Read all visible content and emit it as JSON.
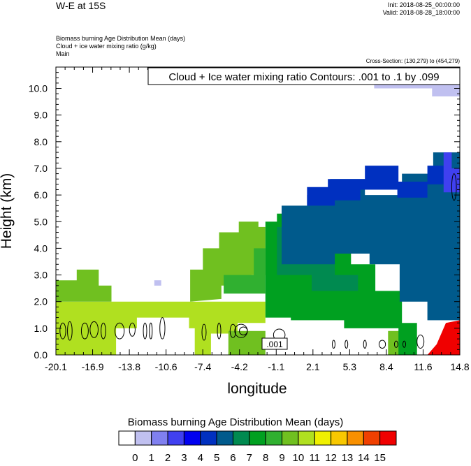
{
  "header": {
    "title": "W-E at 15S",
    "init": "Init: 2018-08-25_00:00:00",
    "valid": "Valid: 2018-08-28_18:00:00",
    "field_lines": [
      "Biomass burning Age Distribution Mean   (days)",
      "Cloud + ice water mixing ratio   (g/kg)",
      "Main"
    ],
    "cross_section": "Cross-Section: (130,279) to (454,279)"
  },
  "chart_data": {
    "type": "heatmap",
    "xlabel": "longitude",
    "ylabel": "Height (km)",
    "x_ticks": [
      "-20.1",
      "-16.9",
      "-13.8",
      "-10.6",
      "-7.4",
      "-4.2",
      "-1.1",
      "2.1",
      "5.3",
      "8.4",
      "11.6",
      "14.8"
    ],
    "y_ticks": [
      "0.0",
      "1.0",
      "2.0",
      "3.0",
      "4.0",
      "5.0",
      "6.0",
      "7.0",
      "8.0",
      "9.0",
      "10.0"
    ],
    "xlim": [
      -20.1,
      14.8
    ],
    "ylim": [
      0,
      10.8
    ],
    "contour_label": "Cloud + Ice water mixing ratio Contours: .001 to .1 by .099",
    "contour_value_label": ".001",
    "colorbar": {
      "title": "Biomass burning Age Distribution Mean  (days)",
      "labels": [
        "0",
        "1",
        "2",
        "3",
        "4",
        "5",
        "6",
        "7",
        "8",
        "9",
        "10",
        "11",
        "12",
        "13",
        "14",
        "15"
      ],
      "colors": [
        "#ffffff",
        "#c0c0f0",
        "#8080f0",
        "#4040f0",
        "#0000f0",
        "#0030c0",
        "#005a8c",
        "#008a50",
        "#00a020",
        "#30b030",
        "#70c020",
        "#b0e020",
        "#f0f000",
        "#f8c800",
        "#f89000",
        "#f04000",
        "#f00000"
      ]
    },
    "regions": [
      {
        "level": 11,
        "points": [
          [
            -20.1,
            0
          ],
          [
            -14.9,
            0
          ],
          [
            -14.9,
            1.0
          ],
          [
            -13.1,
            1.0
          ],
          [
            -13.1,
            1.4
          ],
          [
            -8.6,
            1.4
          ],
          [
            -8.6,
            1.0
          ],
          [
            -8.1,
            1.0
          ],
          [
            -8.1,
            0
          ],
          [
            -6.7,
            0
          ],
          [
            -6.7,
            0.8
          ],
          [
            -4.4,
            0.8
          ],
          [
            -4.4,
            1.2
          ],
          [
            -2.0,
            1.2
          ],
          [
            -2.0,
            2.0
          ],
          [
            -20.1,
            2.0
          ]
        ]
      },
      {
        "level": 10,
        "points": [
          [
            -20.1,
            2.0
          ],
          [
            -20.1,
            2.8
          ],
          [
            -18.3,
            2.8
          ],
          [
            -18.3,
            3.2
          ],
          [
            -16.4,
            3.2
          ],
          [
            -16.4,
            2.6
          ],
          [
            -15.3,
            2.6
          ],
          [
            -15.3,
            2.0
          ]
        ]
      },
      {
        "level": 10,
        "points": [
          [
            -5.2,
            0
          ],
          [
            -5.2,
            0.9
          ],
          [
            -2.0,
            0.9
          ],
          [
            -2.0,
            0
          ]
        ]
      },
      {
        "level": 10,
        "points": [
          [
            -8.5,
            2.0
          ],
          [
            -8.5,
            3.2
          ],
          [
            -7.4,
            3.2
          ],
          [
            -7.4,
            4.0
          ],
          [
            -6.0,
            4.0
          ],
          [
            -6.0,
            4.6
          ],
          [
            -4.3,
            4.6
          ],
          [
            -4.3,
            5.0
          ],
          [
            -2.6,
            5.0
          ],
          [
            -2.6,
            4.8
          ],
          [
            -2.0,
            4.8
          ],
          [
            -2.0,
            3.0
          ],
          [
            -3.2,
            3.0
          ],
          [
            -3.2,
            2.6
          ],
          [
            -5.8,
            2.6
          ],
          [
            -5.8,
            2.1
          ]
        ]
      },
      {
        "level": 10,
        "points": [
          [
            8.6,
            0
          ],
          [
            8.6,
            0.9
          ],
          [
            9.7,
            0.9
          ],
          [
            9.7,
            0.6
          ],
          [
            10.4,
            0.6
          ],
          [
            10.4,
            0
          ]
        ]
      },
      {
        "level": 9,
        "points": [
          [
            -5.6,
            2.3
          ],
          [
            -5.6,
            3.0
          ],
          [
            -3.0,
            3.0
          ],
          [
            -3.0,
            4.0
          ],
          [
            -2.0,
            4.0
          ],
          [
            -2.0,
            2.3
          ]
        ]
      },
      {
        "level": 8,
        "points": [
          [
            -2.0,
            1.4
          ],
          [
            -2.0,
            5.0
          ],
          [
            -1.0,
            5.0
          ],
          [
            -1.0,
            5.3
          ],
          [
            2.0,
            5.3
          ],
          [
            2.0,
            4.6
          ],
          [
            5.4,
            4.6
          ],
          [
            5.4,
            3.4
          ],
          [
            7.5,
            3.4
          ],
          [
            7.5,
            2.4
          ],
          [
            9.8,
            2.4
          ],
          [
            9.8,
            1.2
          ],
          [
            11.1,
            1.2
          ],
          [
            11.1,
            0
          ],
          [
            9.5,
            0
          ],
          [
            9.5,
            1.0
          ],
          [
            4.8,
            1.0
          ],
          [
            4.8,
            1.3
          ],
          [
            0.2,
            1.3
          ],
          [
            0.2,
            1.4
          ]
        ]
      },
      {
        "level": 7,
        "points": [
          [
            -1.0,
            3.0
          ],
          [
            -1.0,
            4.8
          ],
          [
            2.0,
            4.8
          ],
          [
            2.0,
            4.4
          ],
          [
            4.0,
            4.4
          ],
          [
            4.0,
            3.0
          ],
          [
            6.0,
            3.0
          ],
          [
            6.0,
            2.4
          ],
          [
            2.0,
            2.4
          ],
          [
            2.0,
            3.0
          ]
        ]
      },
      {
        "level": 6,
        "points": [
          [
            -0.6,
            3.4
          ],
          [
            -0.6,
            5.6
          ],
          [
            1.6,
            5.6
          ],
          [
            1.6,
            6.0
          ],
          [
            3.6,
            6.0
          ],
          [
            3.6,
            6.6
          ],
          [
            6.6,
            6.6
          ],
          [
            6.6,
            6.0
          ],
          [
            9.8,
            6.0
          ],
          [
            9.8,
            6.8
          ],
          [
            12.5,
            6.8
          ],
          [
            12.5,
            7.6
          ],
          [
            14.8,
            7.6
          ],
          [
            14.8,
            1.3
          ],
          [
            12.0,
            1.3
          ],
          [
            12.0,
            2.0
          ],
          [
            9.6,
            2.0
          ],
          [
            9.6,
            3.4
          ],
          [
            7.0,
            3.4
          ],
          [
            7.0,
            3.8
          ],
          [
            4.0,
            3.8
          ],
          [
            4.0,
            3.4
          ]
        ]
      },
      {
        "level": 5,
        "points": [
          [
            1.6,
            5.6
          ],
          [
            1.6,
            6.3
          ],
          [
            3.4,
            6.3
          ],
          [
            3.4,
            6.6
          ],
          [
            6.6,
            6.6
          ],
          [
            6.6,
            7.1
          ],
          [
            9.5,
            7.1
          ],
          [
            9.5,
            6.5
          ],
          [
            12.0,
            6.5
          ],
          [
            12.0,
            7.1
          ],
          [
            13.4,
            7.1
          ],
          [
            13.4,
            6.4
          ],
          [
            12.0,
            6.4
          ],
          [
            12.0,
            5.9
          ],
          [
            9.4,
            5.9
          ],
          [
            9.4,
            6.2
          ],
          [
            6.2,
            6.2
          ],
          [
            6.2,
            5.8
          ],
          [
            4.0,
            5.8
          ],
          [
            4.0,
            5.6
          ]
        ]
      },
      {
        "level": 3,
        "points": [
          [
            13.4,
            6.1
          ],
          [
            13.4,
            7.6
          ],
          [
            14.1,
            7.6
          ],
          [
            14.1,
            7.0
          ],
          [
            14.8,
            7.0
          ],
          [
            14.8,
            6.1
          ]
        ]
      },
      {
        "level": 1,
        "points": [
          [
            7.4,
            10.2
          ],
          [
            7.4,
            10.0
          ],
          [
            12.4,
            10.0
          ],
          [
            12.4,
            9.7
          ],
          [
            14.8,
            9.7
          ],
          [
            14.8,
            10.2
          ]
        ]
      },
      {
        "level": 1,
        "points": [
          [
            -11.6,
            2.6
          ],
          [
            -11.6,
            2.8
          ],
          [
            -11.0,
            2.8
          ],
          [
            -11.0,
            2.6
          ]
        ]
      },
      {
        "level": 16,
        "points": [
          [
            12.0,
            0
          ],
          [
            12.8,
            0.4
          ],
          [
            13.6,
            1.2
          ],
          [
            14.8,
            1.3
          ],
          [
            14.8,
            0
          ]
        ]
      }
    ]
  }
}
